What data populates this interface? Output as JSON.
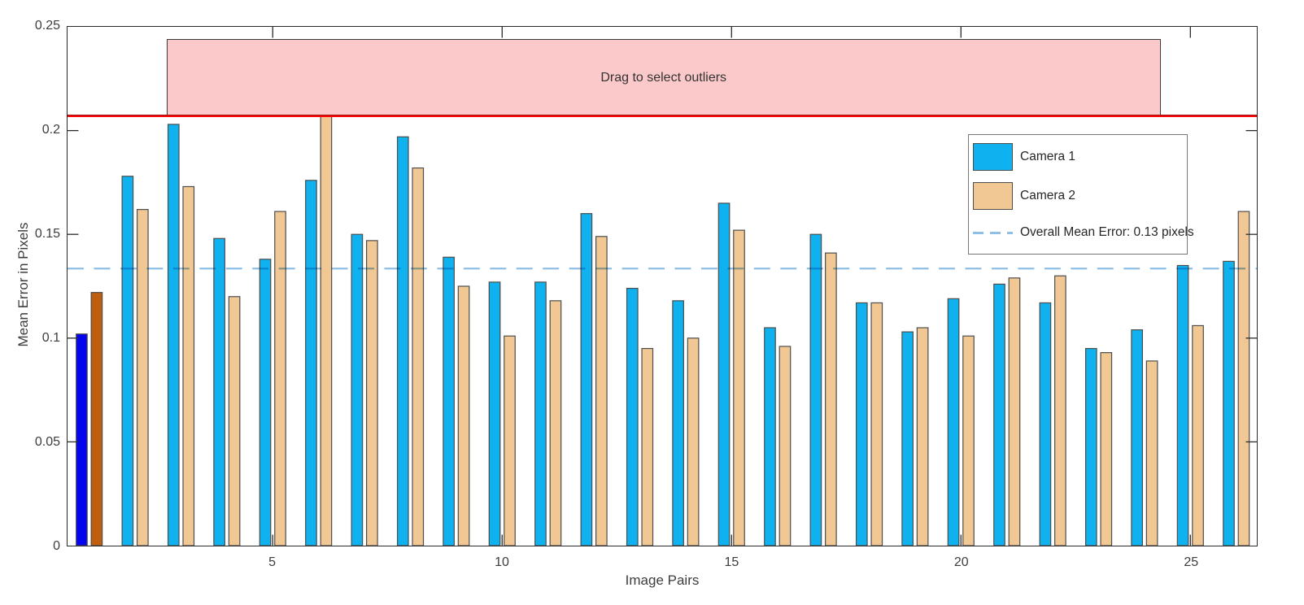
{
  "figure": {
    "ylabel": "Mean Error in Pixels",
    "xlabel": "Image Pairs",
    "drag_label": "Drag to select outliers",
    "legend": {
      "items": [
        {
          "label": "Camera 1"
        },
        {
          "label": "Camera 2"
        },
        {
          "label": "Overall Mean Error: 0.13 pixels"
        }
      ]
    }
  },
  "chart_data": {
    "type": "bar",
    "title": "",
    "xlabel": "Image Pairs",
    "ylabel": "Mean Error in Pixels",
    "ylim": [
      0,
      0.25
    ],
    "yticks": [
      0,
      0.05,
      0.1,
      0.15,
      0.2,
      0.25
    ],
    "xticks": [
      5,
      10,
      15,
      20,
      25
    ],
    "grid": false,
    "legend_position": "upper right",
    "categories": [
      1,
      2,
      3,
      4,
      5,
      6,
      7,
      8,
      9,
      10,
      11,
      12,
      13,
      14,
      15,
      16,
      17,
      18,
      19,
      20,
      21,
      22,
      23,
      24,
      25,
      26
    ],
    "series": [
      {
        "name": "Camera 1",
        "color": "#0FB2EE",
        "values": [
          0.102,
          0.178,
          0.203,
          0.148,
          0.138,
          0.176,
          0.15,
          0.197,
          0.139,
          0.127,
          0.127,
          0.16,
          0.124,
          0.118,
          0.165,
          0.105,
          0.15,
          0.117,
          0.103,
          0.119,
          0.126,
          0.117,
          0.095,
          0.104,
          0.135,
          0.137
        ]
      },
      {
        "name": "Camera 2",
        "color": "#F1C894",
        "values": [
          0.122,
          0.162,
          0.173,
          0.12,
          0.161,
          0.207,
          0.147,
          0.182,
          0.125,
          0.101,
          0.118,
          0.149,
          0.095,
          0.1,
          0.152,
          0.096,
          0.141,
          0.117,
          0.105,
          0.101,
          0.129,
          0.13,
          0.093,
          0.089,
          0.106,
          0.161
        ]
      }
    ],
    "selected_pair": 1,
    "selected_colors": {
      "camera1": "#0404EE",
      "camera2": "#C05E10"
    },
    "overall_mean": 0.1335,
    "overall_mean_label": "Overall Mean Error: 0.13 pixels",
    "threshold": 0.207,
    "outlier_region": {
      "x_start": 2.68,
      "x_end": 24.32,
      "y_top": 0.244
    },
    "colors": {
      "bar_edge": "#4D4D4D",
      "mean_line": "#8FBFE4",
      "threshold_line": "#F80808",
      "threshold_line_edge": "#A01212",
      "outlier_region_fill": "#FBC9CA",
      "outlier_region_border": "#3A3A3A",
      "axis": "#2B2B2B",
      "tick_label": "#3D3D3D",
      "legend_border": "#767676"
    }
  }
}
